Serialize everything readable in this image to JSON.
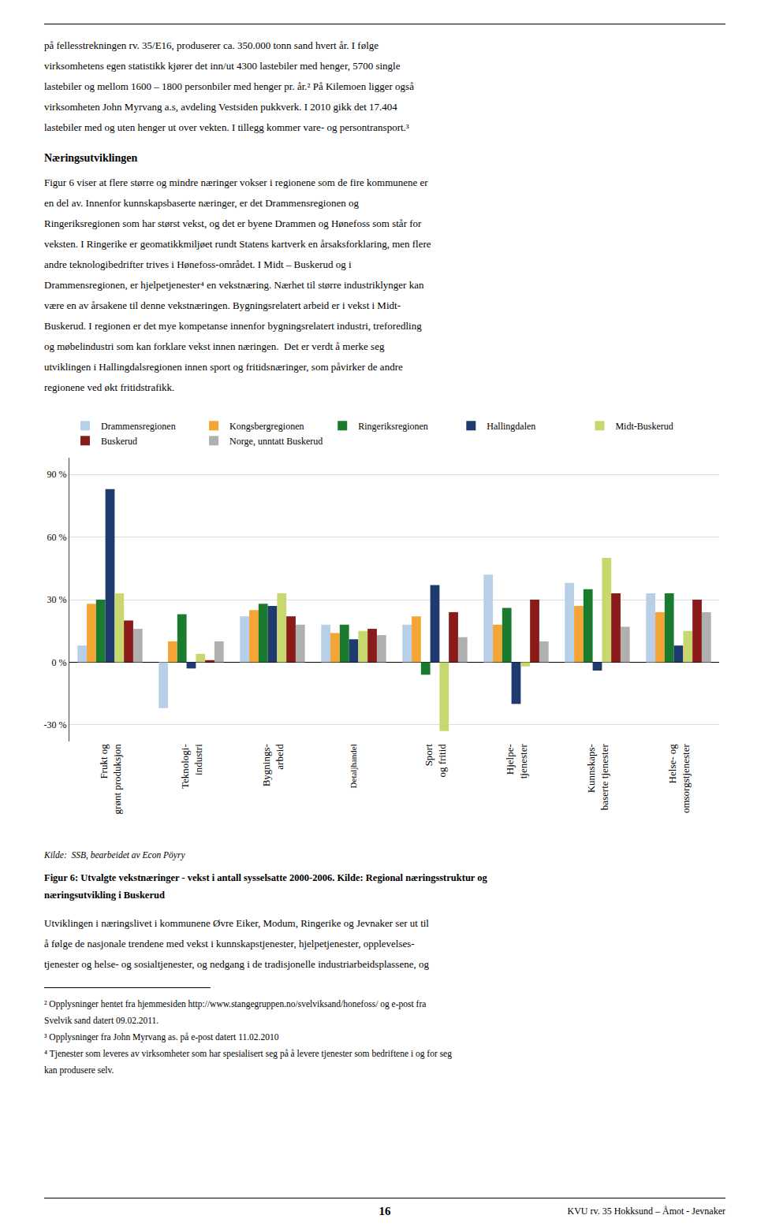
{
  "chart_data": {
    "type": "bar",
    "categories": [
      "Frukt og\ngrønt produksjon",
      "Teknologi-\nindustri",
      "Bygnings-\narbeid",
      "Detaljhandel",
      "Sport\nog fritid",
      "Hjelpe-\ntjenester",
      "Kunnskaps-\nbaserte tjenester",
      "Helse- og\nomsorgstjenester"
    ],
    "series": [
      {
        "name": "Drammensregionen",
        "color": "#b8cfe8",
        "values": [
          8,
          -22,
          22,
          18,
          18,
          42,
          38,
          33
        ]
      },
      {
        "name": "Kongsbergregionen",
        "color": "#f4a535",
        "values": [
          28,
          10,
          25,
          14,
          22,
          18,
          27,
          24
        ]
      },
      {
        "name": "Ringeriksregionen",
        "color": "#1a7a2e",
        "values": [
          30,
          23,
          28,
          18,
          -6,
          26,
          35,
          33
        ]
      },
      {
        "name": "Hallingdalen",
        "color": "#1f3a6e",
        "values": [
          83,
          -3,
          27,
          11,
          37,
          -20,
          -4,
          8
        ]
      },
      {
        "name": "Midt-Buskerud",
        "color": "#c8d86e",
        "values": [
          33,
          4,
          33,
          15,
          -33,
          -2,
          50,
          15
        ]
      },
      {
        "name": "Buskerud",
        "color": "#8b1a1a",
        "values": [
          20,
          1,
          22,
          16,
          24,
          30,
          33,
          30
        ]
      },
      {
        "name": "Norge, unntatt Buskerud",
        "color": "#b0b0b0",
        "values": [
          16,
          10,
          18,
          13,
          12,
          10,
          17,
          24
        ]
      }
    ],
    "ylim": [
      -38,
      98
    ],
    "yticks": [
      {
        "value": -30,
        "label": "-30 %"
      },
      {
        "value": 0,
        "label": "0 %"
      },
      {
        "value": 30,
        "label": "30 %"
      },
      {
        "value": 60,
        "label": "60 %"
      },
      {
        "value": 90,
        "label": "90 %"
      }
    ],
    "grid": true,
    "legend": "top",
    "annotations": [
      "på fellesstrekningen rv. 35/E16, produserer ca. 350.000 tonn sand hvert år. I følge",
      "virksomhetens egen statistikk kjører det inn/ut 4300 lastebiler med henger, 5700 single",
      "lastebiler og mellom 1600 – 1800 personbiler med henger pr. år.² På Kilemoen ligger også",
      "virksomheten John Myrvang a.s, avdeling Vestsiden pukkverk. I 2010 gikk det 17.404",
      "lastebiler med og uten henger ut over vekten. I tillegg kommer vare- og persontransport.³",
      "Næringsutviklingen",
      "Figur 6 viser at flere større og mindre næringer vokser i regionene som de fire kommunene er",
      "en del av. Innenfor kunnskapsbaserte næringer, er det Drammensregionen og",
      "Ringeriksregionen som har størst vekst, og det er byene Drammen og Hønefoss som står for",
      "veksten. I Ringerike er geomatikkmiljøet rundt Statens kartverk en årsaksforklaring, men flere",
      "andre teknologibedrifter trives i Hønefoss-området. I Midt – Buskerud og i",
      "Drammensregionen, er hjelpetjenester⁴ en vekstnæring. Nærhet til større industriklynger kan",
      "være en av årsakene til denne vekstnæringen. Bygningsrelatert arbeid er i vekst i Midt-",
      "Buskerud. I regionen er det mye kompetanse innenfor bygningsrelatert industri, treforedling",
      "og møbelindustri som kan forklare vekst innen næringen.  Det er verdt å merke seg",
      "utviklingen i Hallingdalsregionen innen sport og fritidsnæringer, som påvirker de andre",
      "regionene ved økt fritidstrafikk.",
      "Kilde:  SSB, bearbeidet av Econ Pöyry",
      "Figur 6: Utvalgte vekstnæringer - vekst i antall sysselsatte 2000-2006. Kilde: Regional næringsstruktur og",
      "næringsutvikling i Buskerud",
      "Utviklingen i næringslivet i kommunene Øvre Eiker, Modum, Ringerike og Jevnaker ser ut til",
      "å følge de nasjonale trendene med vekst i kunnskapstjenester, hjelpetjenester, opplevelses-",
      "tjenester og helse- og sosialtjenester, og nedgang i de tradisjonelle industriarbeidsplassene, og",
      "² Opplysninger hentet fra hjemmesiden http://www.stangegruppen.no/svelviksand/honefoss/ og e-post fra",
      "Svelvik sand datert 09.02.2011.",
      "³ Opplysninger fra John Myrvang as. på e-post datert 11.02.2010",
      "⁴ Tjenester som leveres av virksomheter som har spesialisert seg på å levere tjenester som bedriftene i og for seg",
      "kan produsere selv.",
      "16",
      "KVU rv. 35 Hokksund – Åmot - Jevnaker"
    ]
  }
}
